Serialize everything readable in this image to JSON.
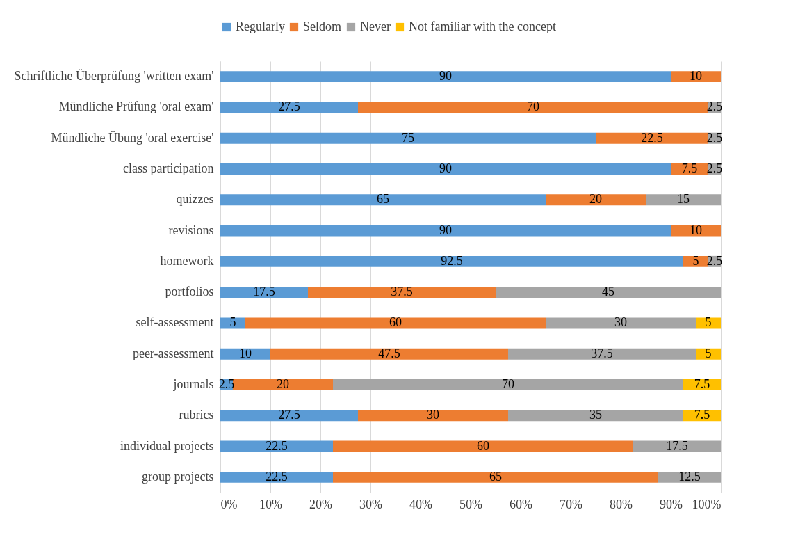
{
  "chart_data": {
    "type": "bar",
    "orientation": "horizontal",
    "stacked": true,
    "data_labels": true,
    "grid": "x",
    "legend": "top",
    "categories": [
      "Schriftliche Überprüfung 'written exam'",
      "Mündliche Prüfung 'oral exam'",
      "Mündliche Übung 'oral exercise'",
      "class participation",
      "quizzes",
      "revisions",
      "homework",
      "portfolios",
      "self-assessment",
      "peer-assessment",
      "journals",
      "rubrics",
      "individual projects",
      "group projects"
    ],
    "series": [
      {
        "name": "Regularly",
        "color": "#5b9bd5",
        "values": [
          90,
          27.5,
          75,
          90,
          65,
          90,
          92.5,
          17.5,
          5,
          10,
          2.5,
          27.5,
          22.5,
          22.5
        ]
      },
      {
        "name": "Seldom",
        "color": "#ed7d31",
        "values": [
          10,
          70,
          22.5,
          7.5,
          20,
          10,
          5,
          37.5,
          60,
          47.5,
          20,
          30,
          60,
          65
        ]
      },
      {
        "name": "Never",
        "color": "#a5a5a5",
        "values": [
          null,
          2.5,
          2.5,
          2.5,
          15,
          null,
          2.5,
          45,
          30,
          37.5,
          70,
          35,
          17.5,
          12.5
        ]
      },
      {
        "name": "Not familiar with the concept",
        "color": "#ffc000",
        "values": [
          null,
          null,
          null,
          null,
          null,
          null,
          null,
          null,
          5,
          5,
          7.5,
          7.5,
          null,
          null
        ]
      }
    ],
    "xlim": [
      0,
      100
    ],
    "xticks": [
      {
        "value": 0,
        "label": "0%"
      },
      {
        "value": 10,
        "label": "10%"
      },
      {
        "value": 20,
        "label": "20%"
      },
      {
        "value": 30,
        "label": "30%"
      },
      {
        "value": 40,
        "label": "40%"
      },
      {
        "value": 50,
        "label": "50%"
      },
      {
        "value": 60,
        "label": "60%"
      },
      {
        "value": 70,
        "label": "70%"
      },
      {
        "value": 80,
        "label": "80%"
      },
      {
        "value": 90,
        "label": "90%"
      },
      {
        "value": 100,
        "label": "100%"
      }
    ]
  }
}
